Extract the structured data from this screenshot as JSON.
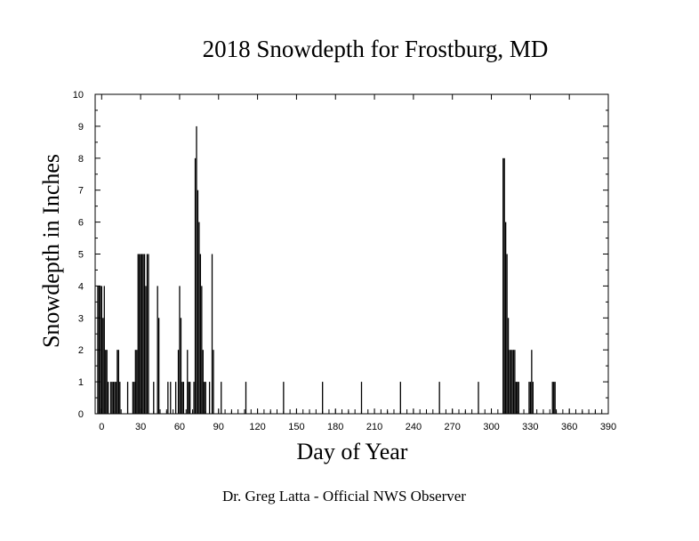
{
  "chart_data": {
    "type": "bar",
    "title": "2018 Snowdepth for Frostburg, MD",
    "xlabel": "Day of Year",
    "ylabel": "Snowdepth in Inches",
    "footer": "Dr. Greg Latta - Official NWS Observer",
    "xlim": [
      -5,
      390
    ],
    "ylim": [
      0,
      10
    ],
    "x_ticks": [
      0,
      30,
      60,
      90,
      120,
      150,
      180,
      210,
      240,
      270,
      300,
      330,
      360,
      390
    ],
    "y_ticks": [
      0,
      1,
      2,
      3,
      4,
      5,
      6,
      7,
      8,
      9,
      10
    ],
    "grid": false,
    "bar_color": "#000000",
    "series": [
      {
        "x": [
          -3,
          -2,
          -1,
          0,
          1,
          2,
          3,
          4,
          5,
          7,
          8,
          9,
          10,
          11,
          12,
          13,
          14,
          20,
          24,
          25,
          26,
          27,
          28,
          29,
          30,
          31,
          32,
          33,
          34,
          35,
          36,
          40,
          43,
          44,
          51,
          53,
          57,
          59,
          60,
          61,
          62,
          63,
          66,
          67,
          68,
          71,
          72,
          73,
          74,
          75,
          76,
          77,
          78,
          79,
          80,
          83,
          85,
          86,
          92,
          111,
          140,
          170,
          200,
          230,
          260,
          290,
          309,
          310,
          311,
          312,
          313,
          314,
          315,
          316,
          317,
          318,
          319,
          320,
          321,
          329,
          330,
          331,
          332,
          347,
          348,
          349
        ],
        "values": [
          4,
          4,
          4,
          4,
          3,
          4,
          2,
          2,
          1,
          1,
          1,
          1,
          1,
          1,
          2,
          2,
          1,
          1,
          1,
          1,
          2,
          2,
          5,
          5,
          5,
          5,
          5,
          5,
          4,
          5,
          5,
          1,
          4,
          3,
          1,
          1,
          1,
          2,
          4,
          3,
          1,
          1,
          2,
          1,
          1,
          1,
          8,
          9,
          7,
          6,
          5,
          4,
          2,
          1,
          1,
          1,
          5,
          2,
          1,
          1,
          1,
          1,
          1,
          1,
          1,
          1,
          8,
          8,
          6,
          5,
          3,
          2,
          2,
          2,
          2,
          2,
          1,
          1,
          1,
          1,
          1,
          2,
          1,
          1,
          1,
          1
        ]
      }
    ]
  }
}
